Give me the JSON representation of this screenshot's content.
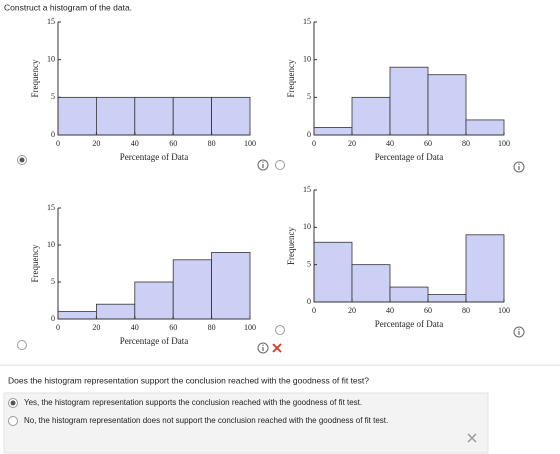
{
  "prompt": "Construct a histogram of the data.",
  "chart_data": [
    {
      "type": "histogram",
      "bins": [
        0,
        20,
        40,
        60,
        80,
        100
      ],
      "values": [
        5,
        5,
        5,
        5,
        5
      ],
      "color": "#ccd0f5",
      "xlim": [
        0,
        100
      ],
      "ylim": [
        0,
        15
      ],
      "xticks": [
        0,
        20,
        40,
        60,
        80,
        100
      ],
      "yticks": [
        0,
        5,
        10,
        15
      ],
      "xlabel": "Percentage of Data",
      "ylabel": "Frequency"
    },
    {
      "type": "histogram",
      "bins": [
        0,
        20,
        40,
        60,
        80,
        100
      ],
      "values": [
        1,
        5,
        9,
        8,
        2
      ],
      "color": "#ccd0f5",
      "xlim": [
        0,
        100
      ],
      "ylim": [
        0,
        15
      ],
      "xticks": [
        0,
        20,
        40,
        60,
        80,
        100
      ],
      "yticks": [
        0,
        5,
        10,
        15
      ],
      "xlabel": "Percentage of Data",
      "ylabel": "Frequency"
    },
    {
      "type": "histogram",
      "bins": [
        0,
        20,
        40,
        60,
        80,
        100
      ],
      "values": [
        1,
        2,
        5,
        8,
        9
      ],
      "color": "#ccd0f5",
      "xlim": [
        0,
        100
      ],
      "ylim": [
        0,
        15
      ],
      "xticks": [
        0,
        20,
        40,
        60,
        80,
        100
      ],
      "yticks": [
        0,
        5,
        10,
        15
      ],
      "xlabel": "Percentage of Data",
      "ylabel": "Frequency"
    },
    {
      "type": "histogram",
      "bins": [
        0,
        20,
        40,
        60,
        80,
        100
      ],
      "values": [
        8,
        5,
        2,
        1,
        9
      ],
      "color": "#ccd0f5",
      "xlim": [
        0,
        100
      ],
      "ylim": [
        0,
        15
      ],
      "xticks": [
        0,
        20,
        40,
        60,
        80,
        100
      ],
      "yticks": [
        0,
        5,
        10,
        15
      ],
      "xlabel": "Percentage of Data",
      "ylabel": "Frequency"
    }
  ],
  "selected_chart": 0,
  "question": "Does the histogram representation support the conclusion reached with the goodness of fit test?",
  "options": [
    "Yes, the histogram representation supports the conclusion reached with the goodness of fit test.",
    "No, the histogram representation does not support the conclusion reached with the goodness of fit test."
  ],
  "selected_option": 0
}
